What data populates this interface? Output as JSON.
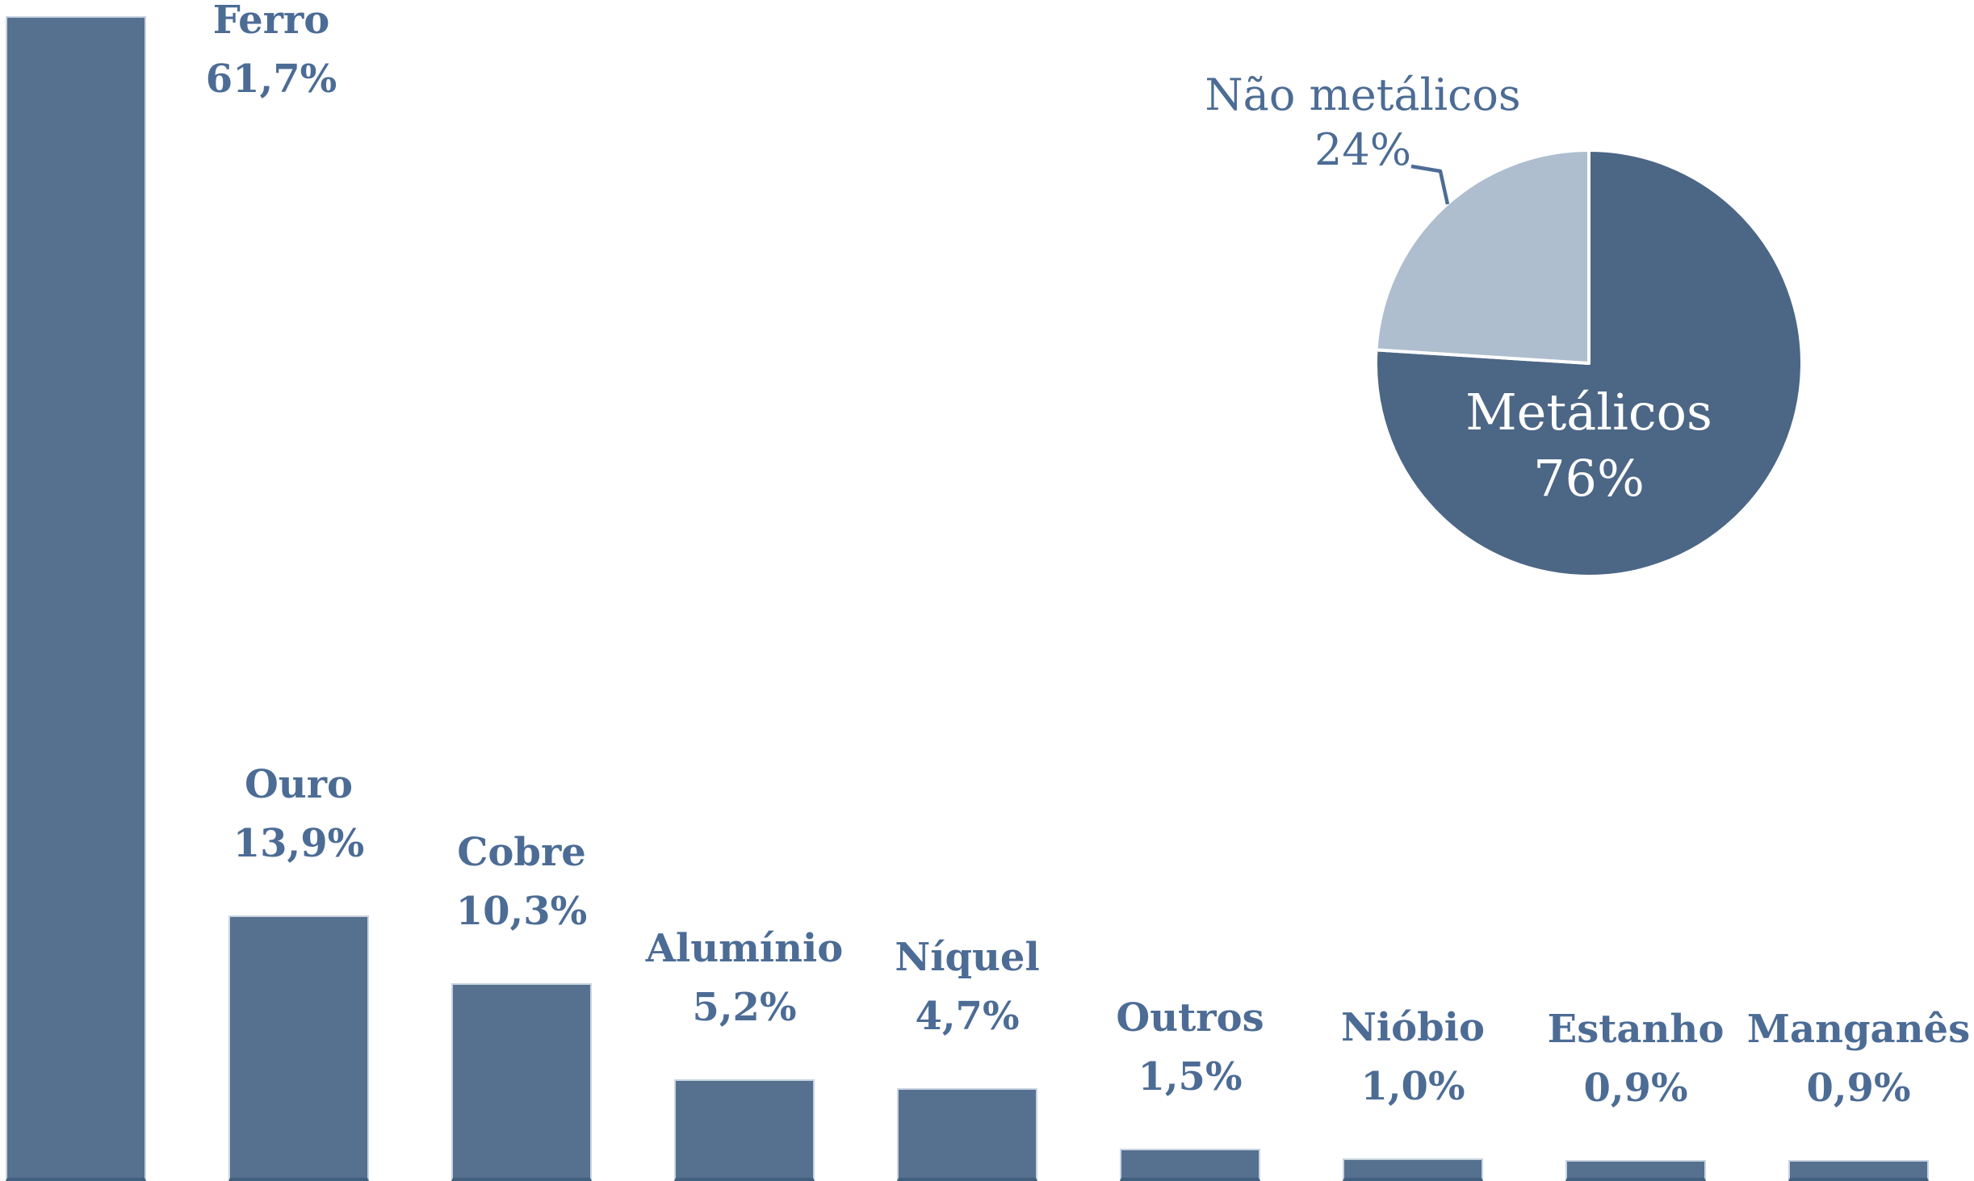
{
  "background": "#FFFFFF",
  "chart_data": [
    {
      "type": "bar",
      "title": "",
      "unit": "%",
      "categories": [
        "Ferro",
        "Ouro",
        "Cobre",
        "Alumínio",
        "Níquel",
        "Outros",
        "Nióbio",
        "Estanho",
        "Manganês"
      ],
      "values": [
        61.7,
        13.9,
        10.3,
        5.2,
        4.7,
        1.5,
        1.0,
        0.9,
        0.9
      ],
      "value_labels": [
        "61,7%",
        "13,9%",
        "10,3%",
        "5,2%",
        "4,7%",
        "1,5%",
        "1,0%",
        "0,9%",
        "0,9%"
      ],
      "bar_color": "#56708F",
      "bar_border_light": "#C9D4E1",
      "bar_border_dark": "#41607F",
      "label_color": "#4C6C95",
      "ylim": [
        0,
        62
      ],
      "grid": false,
      "axes_visible": false
    },
    {
      "type": "pie",
      "start_at": "12-oclock-clockwise",
      "slices": [
        {
          "label": "Metálicos",
          "value": 76,
          "value_label": "76%",
          "color": "#4C6685",
          "text_color": "#FFFFFF",
          "label_position": "inside"
        },
        {
          "label": "Não metálicos",
          "value": 24,
          "value_label": "24%",
          "color": "#AEBECF",
          "text_color": "#4C6C95",
          "label_position": "outside-callout"
        }
      ],
      "slice_gap_color": "#FFFFFF",
      "callout_line_color": "#4C6C95"
    }
  ]
}
